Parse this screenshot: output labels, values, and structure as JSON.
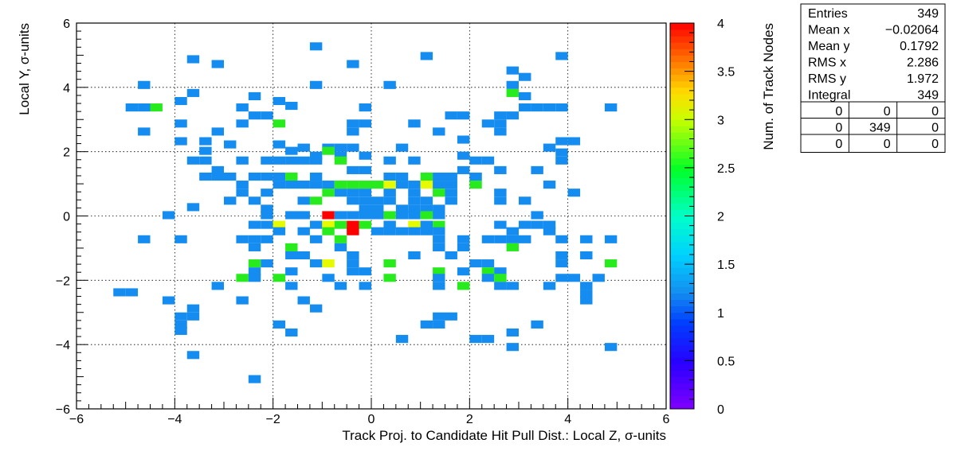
{
  "chart_data": {
    "type": "heatmap",
    "xlabel": "Track Proj. to Candidate Hit Pull Dist.: Local Z, σ-units",
    "ylabel": "Local Y, σ-units",
    "zlabel": "Num. of Track Nodes",
    "xlim": [
      -6,
      6
    ],
    "ylim": [
      -6,
      6
    ],
    "zlim": [
      0,
      4
    ],
    "x_ticks": [
      "−6",
      "−4",
      "−2",
      "0",
      "2",
      "4",
      "6"
    ],
    "y_ticks": [
      "−6",
      "−4",
      "−2",
      "0",
      "2",
      "4",
      "6"
    ],
    "z_ticks": [
      "0",
      "0.5",
      "1",
      "1.5",
      "2",
      "2.5",
      "3",
      "3.5",
      "4"
    ],
    "grid": true,
    "bin_width": 0.25,
    "bins": [
      [
        -3.75,
        4.75,
        1
      ],
      [
        1.0,
        4.85,
        1
      ],
      [
        3.75,
        4.85,
        1
      ],
      [
        -1.25,
        5.15,
        1
      ],
      [
        -3.25,
        4.6,
        1
      ],
      [
        -0.5,
        4.6,
        1
      ],
      [
        2.75,
        4.4,
        1
      ],
      [
        3.0,
        4.2,
        1
      ],
      [
        -4.75,
        3.95,
        1
      ],
      [
        -1.25,
        3.95,
        1
      ],
      [
        0.25,
        3.95,
        1
      ],
      [
        2.75,
        3.95,
        1
      ],
      [
        -3.75,
        3.7,
        1
      ],
      [
        -2.5,
        3.6,
        1
      ],
      [
        2.75,
        3.7,
        2
      ],
      [
        3.0,
        3.6,
        1
      ],
      [
        -4.0,
        3.45,
        1
      ],
      [
        -2.0,
        3.45,
        1
      ],
      [
        -1.75,
        3.3,
        1
      ],
      [
        -2.75,
        3.25,
        1
      ],
      [
        -5.0,
        3.25,
        1
      ],
      [
        -4.75,
        3.25,
        1
      ],
      [
        -4.5,
        3.25,
        2
      ],
      [
        -0.25,
        3.25,
        1
      ],
      [
        3.0,
        3.25,
        1
      ],
      [
        3.25,
        3.25,
        1
      ],
      [
        3.5,
        3.25,
        1
      ],
      [
        3.75,
        3.25,
        1
      ],
      [
        4.75,
        3.25,
        1
      ],
      [
        -2.5,
        3.0,
        1
      ],
      [
        -2.25,
        3.0,
        1
      ],
      [
        1.5,
        3.0,
        1
      ],
      [
        1.75,
        3.0,
        1
      ],
      [
        2.5,
        3.0,
        1
      ],
      [
        2.75,
        3.0,
        1
      ],
      [
        -4.0,
        2.75,
        1
      ],
      [
        -2.75,
        2.75,
        1
      ],
      [
        -2.0,
        2.75,
        2
      ],
      [
        -0.5,
        2.75,
        1
      ],
      [
        -0.25,
        2.75,
        1
      ],
      [
        0.75,
        2.75,
        1
      ],
      [
        2.25,
        2.75,
        1
      ],
      [
        2.5,
        2.75,
        1
      ],
      [
        -4.75,
        2.5,
        1
      ],
      [
        -3.25,
        2.5,
        1
      ],
      [
        -0.5,
        2.5,
        1
      ],
      [
        1.25,
        2.5,
        1
      ],
      [
        2.5,
        2.5,
        1
      ],
      [
        -4.0,
        2.2,
        1
      ],
      [
        -3.5,
        2.2,
        1
      ],
      [
        -3.0,
        2.1,
        1
      ],
      [
        -2.0,
        2.1,
        1
      ],
      [
        -1.5,
        2.0,
        1
      ],
      [
        -1.0,
        2.0,
        1
      ],
      [
        -0.75,
        2.0,
        1
      ],
      [
        -0.5,
        2.0,
        1
      ],
      [
        0.5,
        2.0,
        1
      ],
      [
        1.75,
        2.25,
        1
      ],
      [
        3.75,
        2.2,
        1
      ],
      [
        4.0,
        2.2,
        1
      ],
      [
        3.5,
        2.0,
        1
      ],
      [
        -3.5,
        1.9,
        1
      ],
      [
        -1.75,
        1.9,
        1
      ],
      [
        -1.0,
        1.9,
        2
      ],
      [
        -0.75,
        1.75,
        1
      ],
      [
        -1.75,
        1.6,
        1
      ],
      [
        -1.25,
        1.75,
        1
      ],
      [
        -0.25,
        1.75,
        1
      ],
      [
        1.75,
        1.75,
        1
      ],
      [
        3.75,
        1.85,
        1
      ],
      [
        -3.75,
        1.6,
        1
      ],
      [
        -3.5,
        1.6,
        1
      ],
      [
        -2.75,
        1.6,
        1
      ],
      [
        -2.25,
        1.6,
        1
      ],
      [
        -2.0,
        1.6,
        1
      ],
      [
        -1.5,
        1.6,
        1
      ],
      [
        -1.25,
        1.6,
        1
      ],
      [
        -0.75,
        1.6,
        2
      ],
      [
        0.25,
        1.6,
        1
      ],
      [
        0.75,
        1.6,
        1
      ],
      [
        2.0,
        1.6,
        1
      ],
      [
        2.25,
        1.6,
        1
      ],
      [
        3.75,
        1.6,
        1
      ],
      [
        -3.25,
        1.3,
        1
      ],
      [
        -0.5,
        1.3,
        1
      ],
      [
        -0.25,
        1.3,
        1
      ],
      [
        1.75,
        1.3,
        1
      ],
      [
        2.5,
        1.3,
        1
      ],
      [
        3.25,
        1.3,
        1
      ],
      [
        -3.5,
        1.1,
        1
      ],
      [
        -3.25,
        1.1,
        1
      ],
      [
        -3.0,
        1.1,
        1
      ],
      [
        -2.5,
        1.1,
        1
      ],
      [
        -2.25,
        1.1,
        1
      ],
      [
        -2.0,
        1.1,
        1
      ],
      [
        -1.75,
        1.1,
        2
      ],
      [
        -1.25,
        1.1,
        1
      ],
      [
        0.25,
        1.1,
        1
      ],
      [
        0.5,
        1.1,
        1
      ],
      [
        1.0,
        1.1,
        2
      ],
      [
        1.25,
        1.1,
        1
      ],
      [
        1.5,
        1.1,
        1
      ],
      [
        2.0,
        1.1,
        1
      ],
      [
        -2.75,
        0.85,
        1
      ],
      [
        -2.0,
        0.85,
        1
      ],
      [
        -1.75,
        0.85,
        1
      ],
      [
        -1.5,
        0.85,
        1
      ],
      [
        -1.25,
        0.85,
        1
      ],
      [
        -1.0,
        0.85,
        1
      ],
      [
        -0.75,
        0.85,
        2
      ],
      [
        -0.5,
        0.85,
        2
      ],
      [
        -0.25,
        0.85,
        2
      ],
      [
        0,
        0.85,
        2
      ],
      [
        0.25,
        0.85,
        3
      ],
      [
        0.5,
        0.85,
        1
      ],
      [
        0.75,
        0.85,
        1
      ],
      [
        1.0,
        0.85,
        3
      ],
      [
        1.25,
        0.85,
        1
      ],
      [
        1.5,
        0.85,
        1
      ],
      [
        2.0,
        0.85,
        2
      ],
      [
        3.5,
        0.85,
        1
      ],
      [
        -2.75,
        0.6,
        1
      ],
      [
        -2.25,
        0.6,
        1
      ],
      [
        -1.0,
        0.6,
        2
      ],
      [
        -0.75,
        0.6,
        1
      ],
      [
        -0.5,
        0.6,
        1
      ],
      [
        -0.25,
        0.6,
        1
      ],
      [
        0.25,
        0.6,
        1
      ],
      [
        0.75,
        0.6,
        1
      ],
      [
        1.25,
        0.6,
        2
      ],
      [
        1.5,
        0.6,
        1
      ],
      [
        2.5,
        0.6,
        1
      ],
      [
        4.0,
        0.6,
        1
      ],
      [
        -3.0,
        0.35,
        1
      ],
      [
        -2.5,
        0.35,
        1
      ],
      [
        -1.5,
        0.35,
        1
      ],
      [
        -1.25,
        0.35,
        2
      ],
      [
        -0.5,
        0.35,
        1
      ],
      [
        -0.25,
        0.35,
        1
      ],
      [
        0.0,
        0.35,
        1
      ],
      [
        0.25,
        0.35,
        1
      ],
      [
        0.75,
        0.35,
        1
      ],
      [
        1.0,
        0.35,
        1
      ],
      [
        1.5,
        0.35,
        1
      ],
      [
        2.5,
        0.35,
        1
      ],
      [
        3.0,
        0.35,
        1
      ],
      [
        -3.75,
        0.15,
        1
      ],
      [
        -2.25,
        0.1,
        1
      ],
      [
        -0.25,
        0.1,
        1
      ],
      [
        0.0,
        0.1,
        1
      ],
      [
        0.5,
        0.1,
        1
      ],
      [
        0.75,
        0.1,
        1
      ],
      [
        1.0,
        0.1,
        1
      ],
      [
        1.25,
        0.1,
        1
      ],
      [
        -4.25,
        -0.1,
        1
      ],
      [
        -2.25,
        -0.1,
        1
      ],
      [
        -1.75,
        -0.1,
        1
      ],
      [
        -1.5,
        -0.1,
        1
      ],
      [
        -1.0,
        -0.1,
        4
      ],
      [
        -0.75,
        -0.1,
        1
      ],
      [
        -0.5,
        -0.1,
        1
      ],
      [
        -0.25,
        -0.1,
        1
      ],
      [
        0.0,
        -0.1,
        1
      ],
      [
        0.25,
        -0.1,
        2
      ],
      [
        0.5,
        -0.1,
        1
      ],
      [
        0.75,
        -0.1,
        1
      ],
      [
        1.0,
        -0.1,
        2
      ],
      [
        1.25,
        -0.1,
        1
      ],
      [
        3.25,
        -0.1,
        1
      ],
      [
        -2.5,
        -0.4,
        1
      ],
      [
        -2.25,
        -0.4,
        1
      ],
      [
        -2.0,
        -0.4,
        3
      ],
      [
        -1.25,
        -0.4,
        1
      ],
      [
        -1.0,
        -0.4,
        3
      ],
      [
        -0.75,
        -0.4,
        2
      ],
      [
        -0.5,
        -0.4,
        4
      ],
      [
        -0.25,
        -0.4,
        2
      ],
      [
        0.25,
        -0.4,
        1
      ],
      [
        0.75,
        -0.4,
        3
      ],
      [
        1.0,
        -0.4,
        1
      ],
      [
        1.25,
        -0.4,
        2
      ],
      [
        2.5,
        -0.4,
        1
      ],
      [
        3.0,
        -0.4,
        1
      ],
      [
        3.25,
        -0.4,
        1
      ],
      [
        3.5,
        -0.4,
        1
      ],
      [
        -2.0,
        -0.6,
        1
      ],
      [
        -1.5,
        -0.6,
        1
      ],
      [
        -1.0,
        -0.6,
        2
      ],
      [
        -0.5,
        -0.6,
        4
      ],
      [
        0.0,
        -0.6,
        1
      ],
      [
        0.25,
        -0.6,
        1
      ],
      [
        0.5,
        -0.6,
        1
      ],
      [
        0.75,
        -0.6,
        1
      ],
      [
        1.0,
        -0.6,
        1
      ],
      [
        1.25,
        -0.6,
        1
      ],
      [
        2.75,
        -0.6,
        1
      ],
      [
        3.5,
        -0.6,
        1
      ],
      [
        -4.75,
        -0.85,
        1
      ],
      [
        -4.0,
        -0.85,
        1
      ],
      [
        -2.75,
        -0.85,
        1
      ],
      [
        -2.5,
        -0.85,
        1
      ],
      [
        -2.25,
        -0.85,
        1
      ],
      [
        -1.25,
        -0.85,
        1
      ],
      [
        -0.75,
        -0.85,
        2
      ],
      [
        1.25,
        -0.85,
        1
      ],
      [
        1.75,
        -0.85,
        1
      ],
      [
        2.25,
        -0.85,
        1
      ],
      [
        2.5,
        -0.85,
        1
      ],
      [
        2.75,
        -0.85,
        1
      ],
      [
        3.0,
        -0.85,
        1
      ],
      [
        3.75,
        -0.85,
        1
      ],
      [
        4.25,
        -0.85,
        1
      ],
      [
        4.75,
        -0.85,
        1
      ],
      [
        -2.5,
        -1.1,
        1
      ],
      [
        -1.75,
        -1.1,
        2
      ],
      [
        -0.75,
        -1.1,
        1
      ],
      [
        1.25,
        -1.1,
        1
      ],
      [
        1.75,
        -1.1,
        1
      ],
      [
        2.75,
        -1.1,
        2
      ],
      [
        -1.75,
        -1.35,
        1
      ],
      [
        -1.5,
        -1.35,
        1
      ],
      [
        -0.5,
        -1.35,
        1
      ],
      [
        0.75,
        -1.35,
        1
      ],
      [
        1.5,
        -1.35,
        1
      ],
      [
        3.75,
        -1.35,
        1
      ],
      [
        4.25,
        -1.35,
        1
      ],
      [
        -2.5,
        -1.6,
        2
      ],
      [
        -2.25,
        -1.6,
        1
      ],
      [
        -1.25,
        -1.6,
        1
      ],
      [
        -1.0,
        -1.6,
        3
      ],
      [
        -0.5,
        -1.6,
        1
      ],
      [
        0.25,
        -1.6,
        2
      ],
      [
        2.0,
        -1.6,
        1
      ],
      [
        2.25,
        -1.6,
        1
      ],
      [
        3.75,
        -1.6,
        1
      ],
      [
        4.75,
        -1.6,
        2
      ],
      [
        -2.5,
        -1.85,
        1
      ],
      [
        -1.75,
        -1.85,
        1
      ],
      [
        -0.5,
        -1.85,
        1
      ],
      [
        -0.25,
        -1.85,
        1
      ],
      [
        1.25,
        -1.85,
        2
      ],
      [
        1.75,
        -1.85,
        1
      ],
      [
        2.25,
        -1.85,
        2
      ],
      [
        2.5,
        -1.85,
        1
      ],
      [
        -2.75,
        -2.05,
        2
      ],
      [
        -2.5,
        -2.05,
        1
      ],
      [
        -2.0,
        -2.05,
        2
      ],
      [
        -1.0,
        -2.05,
        1
      ],
      [
        0.25,
        -2.05,
        2
      ],
      [
        1.25,
        -2.05,
        1
      ],
      [
        2.25,
        -2.05,
        1
      ],
      [
        2.5,
        -2.05,
        2
      ],
      [
        3.75,
        -2.05,
        1
      ],
      [
        4.0,
        -2.05,
        1
      ],
      [
        4.5,
        -2.05,
        1
      ],
      [
        -3.25,
        -2.3,
        1
      ],
      [
        -1.75,
        -2.3,
        1
      ],
      [
        -0.75,
        -2.3,
        1
      ],
      [
        -0.25,
        -2.3,
        1
      ],
      [
        1.25,
        -2.3,
        1
      ],
      [
        1.75,
        -2.3,
        2
      ],
      [
        2.5,
        -2.3,
        1
      ],
      [
        2.75,
        -2.3,
        1
      ],
      [
        3.5,
        -2.3,
        1
      ],
      [
        4.25,
        -2.3,
        1
      ],
      [
        -5.25,
        -2.5,
        1
      ],
      [
        -5.0,
        -2.5,
        1
      ],
      [
        4.25,
        -2.55,
        1
      ],
      [
        -4.25,
        -2.75,
        1
      ],
      [
        -2.75,
        -2.75,
        1
      ],
      [
        -1.5,
        -2.75,
        1
      ],
      [
        4.25,
        -2.75,
        1
      ],
      [
        -3.75,
        -3.0,
        1
      ],
      [
        -1.25,
        -3.0,
        1
      ],
      [
        -4.0,
        -3.25,
        1
      ],
      [
        -3.75,
        -3.25,
        1
      ],
      [
        1.25,
        -3.25,
        1
      ],
      [
        1.5,
        -3.25,
        1
      ],
      [
        -4.0,
        -3.5,
        1
      ],
      [
        -2.0,
        -3.5,
        1
      ],
      [
        1.0,
        -3.5,
        1
      ],
      [
        1.25,
        -3.5,
        1
      ],
      [
        3.25,
        -3.5,
        1
      ],
      [
        -4.0,
        -3.7,
        1
      ],
      [
        -1.75,
        -3.75,
        1
      ],
      [
        2.75,
        -3.75,
        1
      ],
      [
        0.5,
        -3.95,
        1
      ],
      [
        2.0,
        -3.95,
        1
      ],
      [
        2.25,
        -3.95,
        1
      ],
      [
        2.75,
        -4.2,
        1
      ],
      [
        4.75,
        -4.2,
        1
      ],
      [
        -3.75,
        -4.45,
        1
      ],
      [
        -2.5,
        -5.2,
        1
      ]
    ]
  },
  "stats_box": {
    "rows": [
      {
        "label": "Entries",
        "value": "349"
      },
      {
        "label": "Mean x",
        "value": "−0.02064"
      },
      {
        "label": "Mean y",
        "value": "0.1792"
      },
      {
        "label": "RMS x",
        "value": "2.286"
      },
      {
        "label": "RMS y",
        "value": "1.972"
      },
      {
        "label": "Integral",
        "value": "349"
      }
    ],
    "grid": [
      [
        "0",
        "0",
        "0"
      ],
      [
        "0",
        "349",
        "0"
      ],
      [
        "0",
        "0",
        "0"
      ]
    ]
  }
}
